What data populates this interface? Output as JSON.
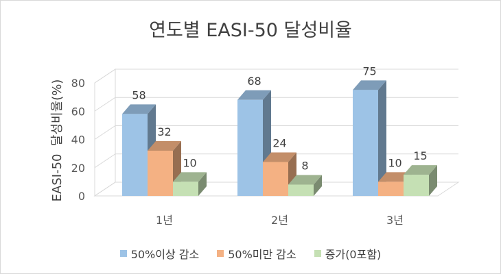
{
  "chart_data": {
    "type": "bar",
    "title": "연도별 EASI-50 달성비율",
    "ylabel": "EASI-50  달성비율(%)",
    "xlabel": "",
    "categories": [
      "1년",
      "2년",
      "3년"
    ],
    "series": [
      {
        "name": "50%이상 감소",
        "values": [
          58,
          68,
          75
        ],
        "color": "#9dc3e6"
      },
      {
        "name": "50%미만 감소",
        "values": [
          32,
          24,
          10
        ],
        "color": "#f4b183"
      },
      {
        "name": "증가(0포함)",
        "values": [
          10,
          8,
          15
        ],
        "color": "#c5e0b4"
      }
    ],
    "ylim": [
      0,
      80
    ],
    "yticks": [
      0,
      20,
      40,
      60,
      80
    ],
    "grid": true,
    "legend": "bottom",
    "projection": "3d"
  }
}
